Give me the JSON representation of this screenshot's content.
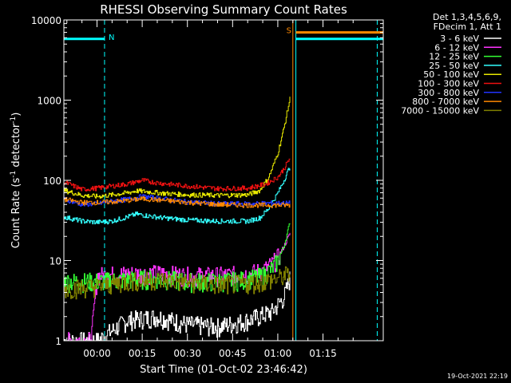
{
  "chart_data": {
    "type": "line",
    "title": "RHESSI Observing Summary Count Rates",
    "xlabel": "Start Time (01-Oct-02 23:46:42)",
    "ylabel_main": "Count Rate (s",
    "ylabel_sup1": "-1",
    "ylabel_mid": " detector",
    "ylabel_sup2": "-1",
    "ylabel_end": ")",
    "yscale": "log",
    "ylim": [
      1,
      10000
    ],
    "xlim_minutes": [
      -11,
      95
    ],
    "y_ticks": [
      {
        "value": 1,
        "label": "1"
      },
      {
        "value": 10,
        "label": "10"
      },
      {
        "value": 100,
        "label": "100"
      },
      {
        "value": 1000,
        "label": "1000"
      },
      {
        "value": 10000,
        "label": "10000"
      }
    ],
    "x_ticks": [
      {
        "value": 0,
        "label": "00:00"
      },
      {
        "value": 15,
        "label": "00:15"
      },
      {
        "value": 30,
        "label": "00:30"
      },
      {
        "value": 45,
        "label": "00:45"
      },
      {
        "value": 60,
        "label": "01:00"
      },
      {
        "value": 75,
        "label": "01:15"
      }
    ],
    "legend_title": [
      "Det 1,3,4,5,6,9,",
      "FDecim 1, Att 1"
    ],
    "series": [
      {
        "name": "3 - 6 keV",
        "color": "#ffffff",
        "x": [
          -11,
          0,
          10,
          20,
          30,
          40,
          50,
          58,
          62,
          64
        ],
        "y": [
          1,
          1,
          1.8,
          2.0,
          1.6,
          1.5,
          1.8,
          2.3,
          3.5,
          6
        ]
      },
      {
        "name": "6 - 12 keV",
        "color": "#ff33ff",
        "x": [
          -11,
          -2,
          0,
          10,
          20,
          30,
          40,
          50,
          55,
          58,
          60,
          62,
          64
        ],
        "y": [
          1,
          1,
          6.5,
          6.8,
          6.9,
          6.5,
          6.5,
          6.8,
          7.5,
          9,
          11,
          15,
          22
        ]
      },
      {
        "name": "12 - 25 keV",
        "color": "#33ff33",
        "x": [
          -11,
          -5,
          0,
          10,
          20,
          30,
          40,
          50,
          55,
          58,
          60,
          62,
          64
        ],
        "y": [
          5.5,
          5.5,
          5.5,
          5.8,
          6.0,
          5.5,
          5.5,
          5.8,
          6.5,
          8,
          10,
          15,
          30
        ]
      },
      {
        "name": "25 - 50 keV",
        "color": "#33ffff",
        "x": [
          -11,
          -5,
          0,
          5,
          10,
          13,
          17,
          22,
          30,
          40,
          50,
          54,
          57,
          60,
          62,
          64
        ],
        "y": [
          35,
          31,
          30,
          31,
          35,
          38,
          36,
          34,
          32,
          31,
          31,
          34,
          45,
          70,
          100,
          150
        ]
      },
      {
        "name": "50 - 100 keV",
        "color": "#e8e800",
        "x": [
          -11,
          -5,
          0,
          5,
          10,
          13,
          17,
          22,
          30,
          40,
          50,
          54,
          57,
          60,
          62,
          64
        ],
        "y": [
          75,
          65,
          63,
          66,
          70,
          74,
          72,
          69,
          66,
          65,
          66,
          75,
          110,
          220,
          450,
          1050
        ]
      },
      {
        "name": "100 - 300 keV",
        "color": "#ee1111",
        "x": [
          -11,
          -5,
          0,
          5,
          10,
          15,
          20,
          30,
          40,
          50,
          56,
          60,
          62,
          64
        ],
        "y": [
          95,
          77,
          80,
          85,
          90,
          100,
          93,
          85,
          79,
          80,
          90,
          110,
          140,
          190
        ]
      },
      {
        "name": "300 - 800 keV",
        "color": "#2233ff",
        "x": [
          -11,
          -5,
          0,
          5,
          10,
          15,
          20,
          30,
          40,
          50,
          58,
          64
        ],
        "y": [
          58,
          50,
          51,
          55,
          58,
          63,
          60,
          54,
          51,
          51,
          52,
          52
        ]
      },
      {
        "name": "800 - 7000 keV",
        "color": "#ff8800",
        "x": [
          -11,
          -5,
          0,
          5,
          10,
          15,
          20,
          30,
          40,
          50,
          58,
          64
        ],
        "y": [
          58,
          53,
          53,
          54,
          56,
          59,
          57,
          53,
          50,
          49,
          49,
          49
        ]
      },
      {
        "name": "7000 - 15000 keV",
        "color": "#808000",
        "x": [
          -11,
          -5,
          0,
          10,
          20,
          30,
          40,
          50,
          55,
          60,
          64
        ],
        "y": [
          4.5,
          4.6,
          4.8,
          5.5,
          5.8,
          5.4,
          5.0,
          5.2,
          5.5,
          6,
          7
        ]
      }
    ],
    "flags": [
      {
        "label": "N",
        "color": "#00ffff",
        "level": 5800,
        "x_start": -11,
        "x_end": 2.5
      },
      {
        "label": "S",
        "color": "#ff8800",
        "level": 7000,
        "x_start": 66,
        "x_end": 95
      },
      {
        "label": "",
        "color": "#00ffff",
        "level": 5800,
        "x_start": 66,
        "x_end": 95
      }
    ],
    "markers": [
      {
        "x": 2.5,
        "color": "#00ffff",
        "style": "dashed"
      },
      {
        "x": 65,
        "color": "#ff8800",
        "style": "solid"
      },
      {
        "x": 66,
        "color": "#00ffff",
        "style": "solid"
      },
      {
        "x": 93,
        "color": "#00ffff",
        "style": "dashed"
      }
    ],
    "grid": false,
    "legend_position": "right"
  },
  "footer": {
    "timestamp": "19-Oct-2021 22:19"
  }
}
